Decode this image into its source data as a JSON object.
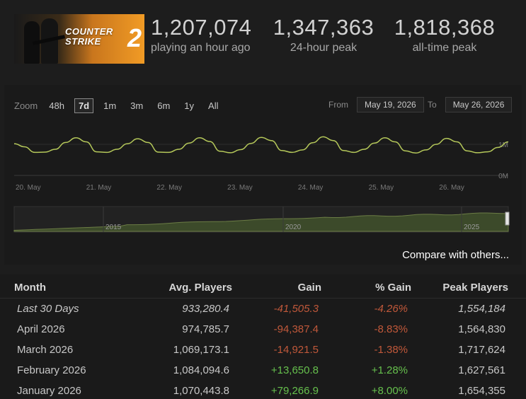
{
  "header": {
    "banner": {
      "line1": "COUNTER",
      "line2": "STRIKE",
      "numeral": "2"
    },
    "stats": [
      {
        "value": "1,207,074",
        "label": "playing an hour ago"
      },
      {
        "value": "1,347,363",
        "label": "24-hour peak"
      },
      {
        "value": "1,818,368",
        "label": "all-time peak"
      }
    ]
  },
  "toolbar": {
    "zoom_label": "Zoom",
    "zoom_options": [
      "48h",
      "7d",
      "1m",
      "3m",
      "6m",
      "1y",
      "All"
    ],
    "active_zoom": "7d",
    "from_label": "From",
    "from_value": "May 19, 2026",
    "to_label": "To",
    "to_value": "May 26, 2026"
  },
  "chart_data": {
    "type": "line",
    "x_ticks": [
      "20. May",
      "21. May",
      "22. May",
      "23. May",
      "24. May",
      "25. May",
      "26. May"
    ],
    "y_ticks": [
      "1M",
      "0M"
    ],
    "series": [
      {
        "values": [
          1.02,
          0.92,
          0.74,
          0.75,
          0.84,
          1.06,
          1.21,
          1.08,
          0.76,
          0.74,
          0.84,
          1.02,
          1.18,
          1.06,
          0.75,
          0.74,
          0.84,
          1.04,
          1.21,
          1.09,
          0.78,
          0.73,
          0.83,
          1.03,
          1.22,
          1.12,
          0.8,
          0.74,
          0.82,
          1.05,
          1.24,
          1.12,
          0.8,
          0.74,
          0.84,
          1.04,
          1.21,
          1.08,
          0.79,
          0.72,
          0.82,
          1.0,
          1.19,
          1.08,
          0.79,
          0.73,
          0.76,
          0.9,
          1.08
        ]
      }
    ],
    "navigator": {
      "x_ticks": [
        "2015",
        "2020",
        "2025"
      ]
    },
    "colors": {
      "line": "#b5c85a",
      "navigator_fill": "#3c4a2a",
      "navigator_line": "#6b7c45"
    }
  },
  "compare_link": "Compare with others...",
  "table": {
    "headers": [
      "Month",
      "Avg. Players",
      "Gain",
      "% Gain",
      "Peak Players"
    ],
    "rows": [
      {
        "month": "Last 30 Days",
        "avg": "933,280.4",
        "gain": "-41,505.3",
        "pct": "-4.26%",
        "peak": "1,554,184",
        "trend": "neg",
        "italic": true
      },
      {
        "month": "April 2026",
        "avg": "974,785.7",
        "gain": "-94,387.4",
        "pct": "-8.83%",
        "peak": "1,564,830",
        "trend": "neg",
        "italic": false
      },
      {
        "month": "March 2026",
        "avg": "1,069,173.1",
        "gain": "-14,921.5",
        "pct": "-1.38%",
        "peak": "1,717,624",
        "trend": "neg",
        "italic": false
      },
      {
        "month": "February 2026",
        "avg": "1,084,094.6",
        "gain": "+13,650.8",
        "pct": "+1.28%",
        "peak": "1,627,561",
        "trend": "pos",
        "italic": false
      },
      {
        "month": "January 2026",
        "avg": "1,070,443.8",
        "gain": "+79,266.9",
        "pct": "+8.00%",
        "peak": "1,654,355",
        "trend": "pos",
        "italic": false
      }
    ]
  }
}
